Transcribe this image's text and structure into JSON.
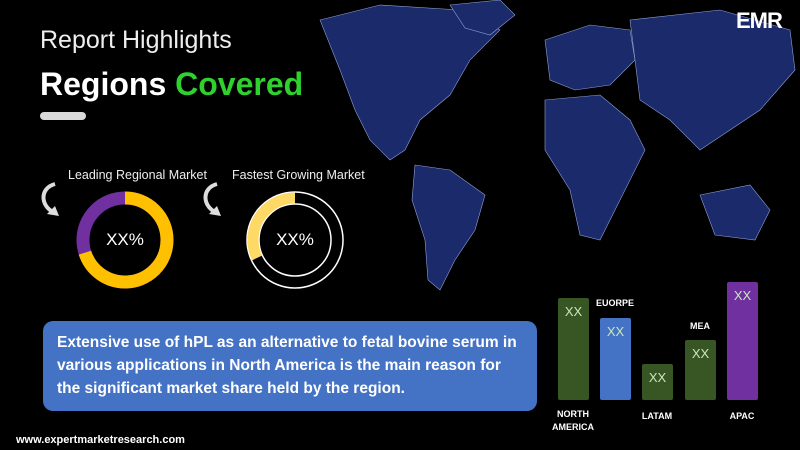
{
  "header": {
    "subtitle": "Report Highlights",
    "title_part1": "Regions",
    "title_part2": "Covered"
  },
  "donuts": [
    {
      "label": "Leading Regional Market",
      "value_text": "XX%",
      "fill_fraction": 0.7,
      "colors": [
        "#ffc000",
        "#7030a0"
      ]
    },
    {
      "label": "Fastest Growing Market",
      "value_text": "XX%",
      "fill_fraction": 0.32,
      "colors": [
        "#ffd966",
        "#ffffff"
      ]
    }
  ],
  "callout": "Extensive use of hPL as an alternative to fetal bovine serum in various applications in North America is the main reason for the significant market share held by the region.",
  "chart_data": {
    "type": "bar",
    "categories": [
      "NORTH AMERICA",
      "EUORPE",
      "LATAM",
      "MEA",
      "APAC"
    ],
    "value_labels": [
      "XX",
      "XX",
      "XX",
      "XX",
      "XX"
    ],
    "colors": [
      "#375623",
      "#4472c4",
      "#375623",
      "#375623",
      "#7030a0"
    ]
  },
  "footer": {
    "url": "www.expertmarketresearch.com"
  },
  "logo": {
    "text": "EMR"
  },
  "colors": {
    "accent_green": "#2ed12e",
    "map": "#1b2a6b",
    "box": "#4472c4"
  }
}
